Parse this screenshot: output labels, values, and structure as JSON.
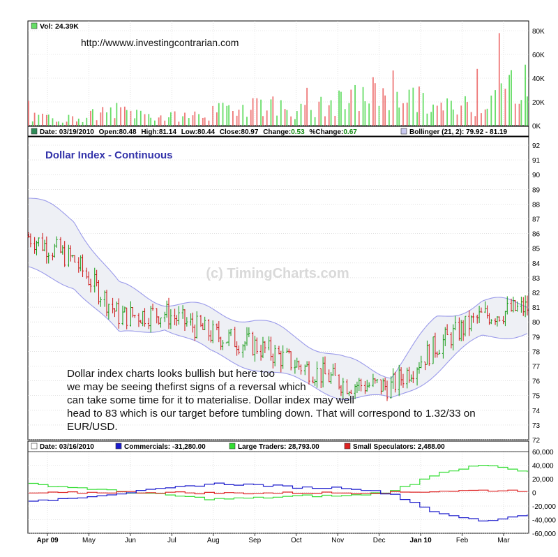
{
  "volume_panel": {
    "legend": "Vol: 24.39K",
    "url": "http://wwww.investingcontrarian.com",
    "y_ticks": [
      "80K",
      "60K",
      "40K",
      "20K",
      "0K"
    ],
    "up_color": "#66dd66",
    "down_color": "#ee7777"
  },
  "price_panel": {
    "header": {
      "date": "Date: 03/19/2010",
      "open": "Open:80.48",
      "high": "High:81.14",
      "low": "Low:80.44",
      "close": "Close:80.97",
      "change_label": "Change:",
      "change_value": "0.53",
      "pct_label": "%Change:",
      "pct_value": "0.67",
      "bollinger": "Bollinger (21, 2): 79.92 - 81.19"
    },
    "title": "Dollar Index - Continuous",
    "watermark": "(c) TimingCharts.com",
    "y_ticks": [
      "92",
      "91",
      "90",
      "89",
      "88",
      "87",
      "86",
      "85",
      "84",
      "83",
      "82",
      "81",
      "80",
      "79",
      "78",
      "77",
      "76",
      "75",
      "74",
      "73",
      "72"
    ],
    "note_lines": [
      "Dollar index charts looks bullish but here too",
      "we may be seeing thefirst signs of a reversal which",
      "can take some time for it to materialise. Dollar index may well",
      "head to 83 which is our target before tumbling down. That will correspond to 1.32/33 on",
      "EUR/USD."
    ]
  },
  "cot_panel": {
    "date": "Date: 03/16/2010",
    "commercials": "Commercials: -31,280.00",
    "large_traders": "Large Traders: 28,793.00",
    "small_speculators": "Small Speculators: 2,488.00",
    "colors": {
      "commercials": "#1a1acc",
      "large_traders": "#33dd33",
      "small_speculators": "#dd2222"
    },
    "y_ticks": [
      "60,000",
      "40,000",
      "20,000",
      "0",
      "-20,000",
      "-40,000",
      "-60,000"
    ]
  },
  "x_axis": {
    "labels": [
      "Apr 09",
      "May",
      "Jun",
      "Jul",
      "Aug",
      "Sep",
      "Oct",
      "Nov",
      "Dec",
      "Jan 10",
      "Feb",
      "Mar"
    ]
  },
  "chart_data": [
    {
      "type": "line",
      "title": "Dollar Index - Continuous",
      "x": [
        "Apr 09",
        "May",
        "Jun",
        "Jul",
        "Aug",
        "Sep",
        "Oct",
        "Nov",
        "Dec",
        "Jan 10",
        "Feb",
        "Mar"
      ],
      "series": [
        {
          "name": "Bollinger (21, 2)",
          "values": [
            [
              83.4,
              88.4
            ],
            [
              82.6,
              87.0
            ],
            [
              79.0,
              82.4
            ],
            [
              79.8,
              81.4
            ],
            [
              77.8,
              80.8
            ],
            [
              77.0,
              80.1
            ],
            [
              75.8,
              78.9
            ],
            [
              75.0,
              77.3
            ],
            [
              74.6,
              76.5
            ],
            [
              76.7,
              80.2
            ],
            [
              78.9,
              81.4
            ],
            [
              79.4,
              81.2
            ]
          ]
        }
      ],
      "close_approx": [
        85.8,
        84.2,
        80.4,
        80.6,
        79.2,
        78.4,
        77.0,
        75.8,
        75.6,
        78.4,
        80.4,
        80.97
      ],
      "ylim": [
        72,
        92
      ],
      "last": {
        "date": "03/19/2010",
        "open": 80.48,
        "high": 81.14,
        "low": 80.44,
        "close": 80.97,
        "change": 0.53,
        "pct_change": 0.67,
        "bollinger_lower": 79.92,
        "bollinger_upper": 81.19
      }
    },
    {
      "type": "bar",
      "title": "Vol: 24.39K",
      "categories": [
        "Apr 09",
        "May",
        "Jun",
        "Jul",
        "Aug",
        "Sep",
        "Oct",
        "Nov",
        "Dec",
        "Jan 10",
        "Feb",
        "Mar"
      ],
      "values": [
        7,
        6,
        13,
        7,
        10,
        20,
        12,
        20,
        32,
        14,
        20,
        44
      ],
      "ylabel": "K",
      "ylim": [
        0,
        85
      ]
    },
    {
      "type": "line",
      "x": [
        "Apr 09",
        "May",
        "Jun",
        "Jul",
        "Aug",
        "Sep",
        "Oct",
        "Nov",
        "Dec",
        "Jan 10",
        "Feb",
        "Mar"
      ],
      "series": [
        {
          "name": "Commercials",
          "values": [
            -14000,
            -7000,
            -1000,
            6000,
            13000,
            11000,
            7000,
            7000,
            -3000,
            -32000,
            -42000,
            -31280
          ]
        },
        {
          "name": "Large Traders",
          "values": [
            12000,
            7000,
            1000,
            -4000,
            -10000,
            -8000,
            -5000,
            -5000,
            2000,
            30000,
            40000,
            28793
          ]
        },
        {
          "name": "Small Speculators",
          "values": [
            -1000,
            -500,
            500,
            0,
            -1000,
            -1000,
            -500,
            -600,
            0,
            2000,
            3000,
            2488
          ]
        }
      ],
      "ylim": [
        -60000,
        60000
      ]
    }
  ]
}
